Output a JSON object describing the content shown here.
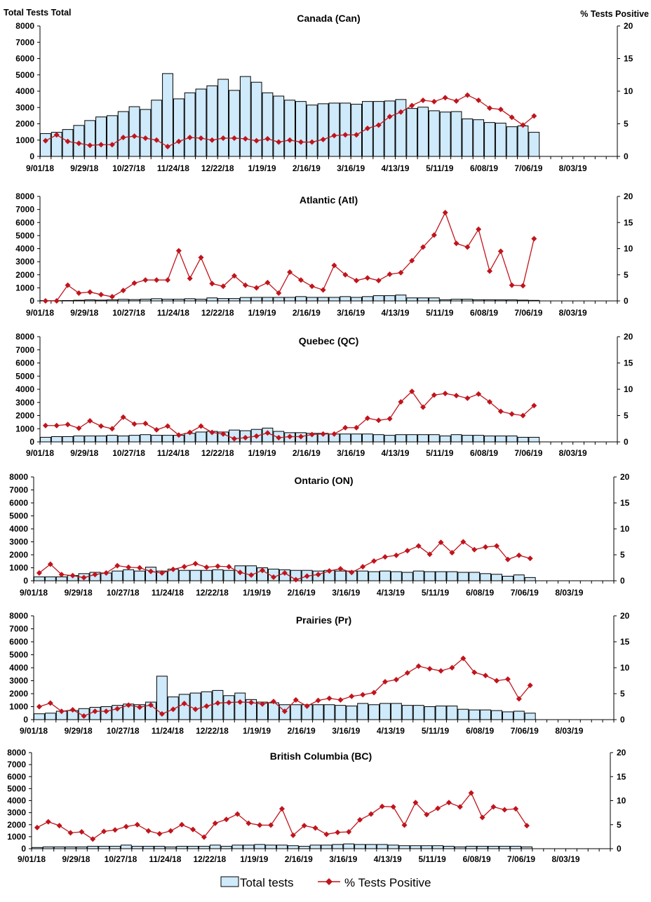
{
  "header": {
    "left_axis_label": "Total Tests Total",
    "right_axis_label": "% Tests Positive"
  },
  "legend": {
    "bars": "Total tests",
    "line": "% Tests Positive"
  },
  "colors": {
    "bar_fill": "#cfeafa",
    "bar_stroke": "#000000",
    "line": "#c0141c"
  },
  "chart_data": [
    {
      "type": "bar+line",
      "title": "Canada (Can)",
      "x_tick_labels": [
        "9/01/18",
        "9/29/18",
        "10/27/18",
        "11/24/18",
        "12/22/18",
        "1/19/19",
        "2/16/19",
        "3/16/19",
        "4/13/19",
        "5/11/19",
        "6/08/19",
        "7/06/19",
        "8/03/19"
      ],
      "left_ticks": [
        0,
        1000,
        2000,
        3000,
        4000,
        5000,
        6000,
        7000,
        8000
      ],
      "right_ticks": [
        0,
        5,
        10,
        15,
        20
      ],
      "ylim_left": [
        0,
        8000
      ],
      "ylim_right": [
        0,
        20
      ],
      "total_tests": [
        1400,
        1480,
        1650,
        1900,
        2200,
        2420,
        2500,
        2750,
        3050,
        2880,
        3450,
        5080,
        3530,
        3900,
        4130,
        4330,
        4730,
        4050,
        4900,
        4550,
        3900,
        3700,
        3450,
        3370,
        3150,
        3230,
        3270,
        3270,
        3200,
        3370,
        3370,
        3400,
        3490,
        2940,
        3020,
        2800,
        2720,
        2750,
        2300,
        2250,
        2080,
        2040,
        1820,
        1870,
        1480
      ],
      "pct_positive": [
        2.4,
        3.3,
        2.3,
        2.0,
        1.7,
        1.8,
        1.8,
        2.9,
        3.1,
        2.8,
        2.5,
        1.5,
        2.3,
        2.9,
        2.8,
        2.5,
        2.8,
        2.8,
        2.7,
        2.4,
        2.7,
        2.2,
        2.5,
        2.2,
        2.2,
        2.6,
        3.2,
        3.3,
        3.3,
        4.3,
        4.8,
        6.1,
        6.8,
        7.8,
        8.6,
        8.4,
        9.0,
        8.5,
        9.4,
        8.6,
        7.4,
        7.2,
        6.0,
        4.8,
        6.2
      ]
    },
    {
      "type": "bar+line",
      "title": "Atlantic (Atl)",
      "x_tick_labels": [
        "9/01/18",
        "9/29/18",
        "10/27/18",
        "11/24/18",
        "12/22/18",
        "1/19/19",
        "2/16/19",
        "3/16/19",
        "4/13/19",
        "5/11/19",
        "6/08/19",
        "7/06/19",
        "8/03/19"
      ],
      "left_ticks": [
        0,
        1000,
        2000,
        3000,
        4000,
        5000,
        6000,
        7000,
        8000
      ],
      "right_ticks": [
        0,
        5,
        10,
        15,
        20
      ],
      "ylim_left": [
        0,
        8000
      ],
      "ylim_right": [
        0,
        20
      ],
      "total_tests": [
        20,
        20,
        30,
        50,
        80,
        60,
        80,
        120,
        100,
        130,
        170,
        130,
        130,
        170,
        130,
        230,
        180,
        180,
        260,
        270,
        270,
        270,
        270,
        330,
        270,
        270,
        270,
        330,
        270,
        330,
        400,
        400,
        450,
        230,
        230,
        230,
        90,
        130,
        130,
        90,
        90,
        80,
        80,
        60,
        40
      ],
      "pct_positive": [
        0,
        0,
        3.0,
        1.5,
        1.7,
        1.2,
        0.8,
        2.0,
        3.4,
        4.0,
        4.0,
        4.0,
        9.6,
        4.3,
        8.3,
        3.3,
        2.8,
        4.8,
        3.0,
        2.5,
        3.5,
        1.5,
        5.5,
        4.0,
        2.8,
        2.1,
        6.8,
        5.0,
        3.9,
        4.4,
        3.9,
        5.1,
        5.4,
        7.7,
        10.3,
        12.6,
        16.9,
        11.0,
        10.3,
        13.7,
        5.7,
        9.5,
        3.0,
        2.9,
        11.9
      ]
    },
    {
      "type": "bar+line",
      "title": "Quebec (QC)",
      "x_tick_labels": [
        "9/01/18",
        "9/29/18",
        "10/27/18",
        "11/24/18",
        "12/22/18",
        "1/19/19",
        "2/16/19",
        "3/16/19",
        "4/13/19",
        "5/11/19",
        "6/08/19",
        "7/06/19",
        "8/03/19"
      ],
      "left_ticks": [
        0,
        1000,
        2000,
        3000,
        4000,
        5000,
        6000,
        7000,
        8000
      ],
      "right_ticks": [
        0,
        5,
        10,
        15,
        20
      ],
      "ylim_left": [
        0,
        8000
      ],
      "ylim_right": [
        0,
        20
      ],
      "total_tests": [
        350,
        400,
        400,
        450,
        450,
        450,
        500,
        450,
        500,
        550,
        500,
        500,
        500,
        650,
        750,
        800,
        750,
        900,
        850,
        950,
        1050,
        800,
        700,
        700,
        650,
        650,
        600,
        600,
        600,
        600,
        550,
        500,
        550,
        550,
        550,
        550,
        450,
        550,
        500,
        500,
        450,
        450,
        450,
        350,
        350
      ],
      "pct_positive": [
        3.1,
        3.1,
        3.3,
        2.6,
        4.0,
        3.0,
        2.5,
        4.7,
        3.4,
        3.5,
        2.3,
        3.0,
        1.3,
        1.8,
        3.0,
        1.8,
        1.5,
        0.6,
        0.8,
        1.1,
        1.7,
        0.8,
        1.0,
        1.0,
        1.4,
        1.5,
        1.5,
        2.7,
        2.7,
        4.5,
        4.1,
        4.4,
        7.6,
        9.6,
        6.6,
        8.9,
        9.2,
        8.8,
        8.3,
        9.1,
        7.6,
        5.8,
        5.3,
        5.0,
        6.9
      ]
    },
    {
      "type": "bar+line",
      "title": "Ontario (ON)",
      "x_tick_labels": [
        "9/01/18",
        "9/29/18",
        "10/27/18",
        "11/24/18",
        "12/22/18",
        "1/19/19",
        "2/16/19",
        "3/16/19",
        "4/13/19",
        "5/11/19",
        "6/08/19",
        "7/06/19",
        "8/03/19"
      ],
      "left_ticks": [
        0,
        1000,
        2000,
        3000,
        4000,
        5000,
        6000,
        7000,
        8000
      ],
      "right_ticks": [
        0,
        5,
        10,
        15,
        20
      ],
      "ylim_left": [
        0,
        8000
      ],
      "ylim_right": [
        0,
        20
      ],
      "total_tests": [
        300,
        300,
        300,
        400,
        550,
        650,
        600,
        750,
        850,
        750,
        1050,
        750,
        900,
        800,
        800,
        800,
        850,
        800,
        1150,
        1150,
        1000,
        900,
        850,
        800,
        800,
        750,
        800,
        750,
        750,
        750,
        700,
        750,
        700,
        650,
        750,
        700,
        700,
        700,
        650,
        650,
        550,
        500,
        350,
        450,
        250
      ],
      "pct_positive": [
        1.5,
        3.2,
        1.2,
        1.0,
        0.6,
        1.2,
        1.5,
        2.9,
        2.6,
        2.5,
        1.8,
        1.5,
        2.2,
        2.7,
        3.3,
        2.6,
        2.8,
        2.7,
        1.6,
        1.1,
        2.0,
        0.7,
        1.5,
        0.2,
        0.9,
        1.2,
        1.9,
        2.3,
        1.6,
        2.7,
        3.8,
        4.6,
        4.9,
        5.8,
        6.7,
        5.1,
        7.4,
        5.4,
        7.5,
        6.0,
        6.5,
        6.7,
        4.1,
        4.9,
        4.3
      ]
    },
    {
      "type": "bar+line",
      "title": "Prairies (Pr)",
      "x_tick_labels": [
        "9/01/18",
        "9/29/18",
        "10/27/18",
        "11/24/18",
        "12/22/18",
        "1/19/19",
        "2/16/19",
        "3/16/19",
        "4/13/19",
        "5/11/19",
        "6/08/19",
        "7/06/19",
        "8/03/19"
      ],
      "left_ticks": [
        0,
        1000,
        2000,
        3000,
        4000,
        5000,
        6000,
        7000,
        8000
      ],
      "right_ticks": [
        0,
        5,
        10,
        15,
        20
      ],
      "ylim_left": [
        0,
        8000
      ],
      "ylim_right": [
        0,
        20
      ],
      "total_tests": [
        450,
        500,
        650,
        700,
        850,
        950,
        1000,
        1100,
        1200,
        1150,
        1350,
        3350,
        1750,
        1950,
        2050,
        2150,
        2250,
        1850,
        2050,
        1550,
        1350,
        1300,
        1150,
        1150,
        1150,
        1150,
        1150,
        1100,
        1050,
        1250,
        1150,
        1250,
        1250,
        1100,
        1100,
        1000,
        1050,
        1050,
        800,
        750,
        750,
        700,
        600,
        650,
        500
      ],
      "pct_positive": [
        2.5,
        3.2,
        1.6,
        1.9,
        0.7,
        1.6,
        1.6,
        2.1,
        2.8,
        2.4,
        2.8,
        1.1,
        2.0,
        3.1,
        2.0,
        2.6,
        3.2,
        3.3,
        3.4,
        3.3,
        3.0,
        3.5,
        1.6,
        3.8,
        2.6,
        3.7,
        4.1,
        3.8,
        4.5,
        4.8,
        5.2,
        7.3,
        7.7,
        9.0,
        10.3,
        9.8,
        9.4,
        10.0,
        11.8,
        9.1,
        8.5,
        7.5,
        7.8,
        4.0,
        6.6
      ]
    },
    {
      "type": "bar+line",
      "title": "British Columbia (BC)",
      "x_tick_labels": [
        "9/01/18",
        "9/29/18",
        "10/27/18",
        "11/24/18",
        "12/22/18",
        "1/19/19",
        "2/16/19",
        "3/16/19",
        "4/13/19",
        "5/11/19",
        "6/08/19",
        "7/06/19",
        "8/03/19"
      ],
      "left_ticks": [
        0,
        1000,
        2000,
        3000,
        4000,
        5000,
        6000,
        7000,
        8000
      ],
      "right_ticks": [
        0,
        5,
        10,
        15,
        20
      ],
      "ylim_left": [
        0,
        8000
      ],
      "ylim_right": [
        0,
        20
      ],
      "total_tests": [
        100,
        150,
        150,
        150,
        150,
        200,
        200,
        200,
        300,
        200,
        200,
        200,
        150,
        200,
        200,
        200,
        300,
        200,
        300,
        300,
        350,
        300,
        300,
        250,
        200,
        300,
        300,
        350,
        400,
        350,
        350,
        350,
        300,
        250,
        250,
        250,
        250,
        200,
        150,
        200,
        200,
        200,
        200,
        200,
        150
      ],
      "pct_positive": [
        4.4,
        5.6,
        4.8,
        3.3,
        3.5,
        2.0,
        3.6,
        3.9,
        4.6,
        5.0,
        3.7,
        3.1,
        3.7,
        5.0,
        4.0,
        2.4,
        5.3,
        6.1,
        7.2,
        5.3,
        4.9,
        4.9,
        8.3,
        2.8,
        4.8,
        4.3,
        3.0,
        3.4,
        3.5,
        6.0,
        7.2,
        8.8,
        8.7,
        4.9,
        9.6,
        7.1,
        8.4,
        9.6,
        8.7,
        11.6,
        6.5,
        8.7,
        8.1,
        8.3,
        4.8
      ]
    }
  ]
}
